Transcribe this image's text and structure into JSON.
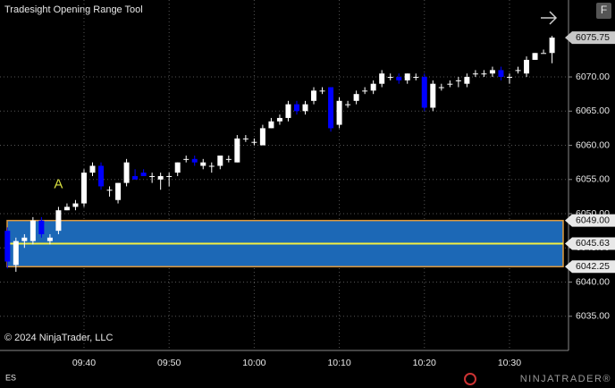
{
  "chart_data": {
    "type": "candlestick",
    "title": "Tradesight Opening Range Tool",
    "copyright": "© 2024 NinjaTrader, LLC",
    "instrument": "ES",
    "brand": "NINJATRADER®",
    "button": "F",
    "annotation": "A",
    "categories": [
      null,
      null,
      null,
      null,
      null,
      null,
      null,
      null,
      null,
      "09:40",
      null,
      null,
      null,
      null,
      null,
      null,
      null,
      null,
      null,
      "09:50",
      null,
      null,
      null,
      null,
      null,
      null,
      null,
      null,
      null,
      "10:00",
      null,
      null,
      null,
      null,
      null,
      null,
      null,
      null,
      null,
      "10:10",
      null,
      null,
      null,
      null,
      null,
      null,
      null,
      null,
      null,
      "10:20",
      null,
      null,
      null,
      null,
      null,
      null,
      null,
      null,
      null,
      "10:30",
      null,
      null,
      null,
      null,
      null
    ],
    "open": [
      6047.5,
      6042.5,
      6046,
      6046,
      6049,
      6046,
      6047.5,
      6050.5,
      6051,
      6051.5,
      6056,
      6057,
      6053.5,
      6052,
      6054.5,
      6055.5,
      6056,
      6055.5,
      6055,
      6055.5,
      6056,
      6058,
      6058,
      6057,
      6057,
      6057,
      6058,
      6057.5,
      6061,
      6060.5,
      6060,
      6062.5,
      6063.5,
      6064,
      6066,
      6065,
      6066.5,
      6068,
      6068.5,
      6063,
      6066,
      6066.5,
      6068,
      6068,
      6069,
      6070,
      6070,
      6069.5,
      6070,
      6070,
      6065.5,
      6068.5,
      6069,
      6069.5,
      6069,
      6070.5,
      6070.5,
      6070.5,
      6071,
      6070,
      6071,
      6070.5,
      6072.5,
      6073.5,
      6073.5
    ],
    "high": [
      6048,
      6046.5,
      6047,
      6049.5,
      6049.5,
      6047,
      6051,
      6051.5,
      6052,
      6056.5,
      6057.5,
      6057.5,
      6054,
      6054.5,
      6058,
      6056.5,
      6056.5,
      6056,
      6056,
      6056,
      6057.5,
      6058.5,
      6058.5,
      6058,
      6057.5,
      6058.5,
      6058.5,
      6061.5,
      6061.5,
      6061,
      6063,
      6064,
      6064.5,
      6066.5,
      6066.5,
      6066.5,
      6068.5,
      6068.5,
      6068.5,
      6067,
      6066.5,
      6068,
      6068.5,
      6069.5,
      6071,
      6070.5,
      6070.5,
      6070.5,
      6070.5,
      6070.5,
      6069.5,
      6069,
      6069.5,
      6070,
      6070.5,
      6071,
      6071,
      6071.5,
      6071.5,
      6070.5,
      6071.5,
      6073,
      6073.5,
      6074,
      6076
    ],
    "low": [
      6042,
      6041.5,
      6045,
      6045.5,
      6046.5,
      6045.5,
      6047,
      6050.5,
      6050.5,
      6051,
      6055.5,
      6053.5,
      6052.5,
      6051.5,
      6054,
      6055,
      6055.5,
      6054.5,
      6053.5,
      6054,
      6055.5,
      6057.5,
      6057,
      6056.5,
      6056,
      6056.5,
      6057.5,
      6057.5,
      6060.5,
      6060,
      6060,
      6062.5,
      6063,
      6063.5,
      6064.5,
      6064.5,
      6066,
      6067.5,
      6062,
      6062.5,
      6065.5,
      6066,
      6067.5,
      6067.5,
      6068.5,
      6069.5,
      6069,
      6069,
      6069.5,
      6065,
      6065,
      6068,
      6068.5,
      6068.5,
      6068.5,
      6070,
      6070,
      6070,
      6069.5,
      6069,
      6070.5,
      6070,
      6072.5,
      6073.5,
      6072
    ],
    "close": [
      6043,
      6046,
      6046.5,
      6049,
      6047,
      6046.5,
      6050.5,
      6051,
      6051.5,
      6056,
      6057,
      6054,
      6053.5,
      6054.5,
      6057.5,
      6055,
      6055.5,
      6055.5,
      6055.5,
      6055.5,
      6057.5,
      6058,
      6057.5,
      6057.5,
      6057,
      6058.5,
      6058,
      6061,
      6061,
      6060.5,
      6062.5,
      6063.5,
      6064,
      6066,
      6065,
      6066,
      6068,
      6068,
      6062.5,
      6066.5,
      6066,
      6067.5,
      6068,
      6069,
      6070.5,
      6070,
      6069.5,
      6070.5,
      6070,
      6065.5,
      6069,
      6068.5,
      6069,
      6069.5,
      6070,
      6070.5,
      6070.5,
      6071,
      6070,
      6070,
      6071,
      6072.5,
      6073.5,
      6073.5,
      6075.75
    ],
    "up_color": "#ffffff",
    "down_color": "#0000ff",
    "ylim": [
      6030,
      6081.25
    ],
    "yticks": [
      {
        "value": 6035,
        "label": "6035.00"
      },
      {
        "value": 6040,
        "label": "6040.00"
      },
      {
        "value": 6045,
        "label": "6045.00"
      },
      {
        "value": 6050,
        "label": "6050.00"
      },
      {
        "value": 6055,
        "label": "6055.00"
      },
      {
        "value": 6060,
        "label": "6060.00"
      },
      {
        "value": 6065,
        "label": "6065.00"
      },
      {
        "value": 6070,
        "label": "6070.00"
      }
    ],
    "grid": true,
    "opening_range": {
      "high": 6049,
      "high_label": "6049.00",
      "mid": 6045.63,
      "mid_label": "6045.63",
      "low": 6042.25,
      "low_label": "6042.25",
      "fill": "#1c68b6",
      "border": "#e09a3c",
      "mid_color": "#f4f040"
    },
    "last_price": 6075.75,
    "last_price_label": "6075.75"
  }
}
